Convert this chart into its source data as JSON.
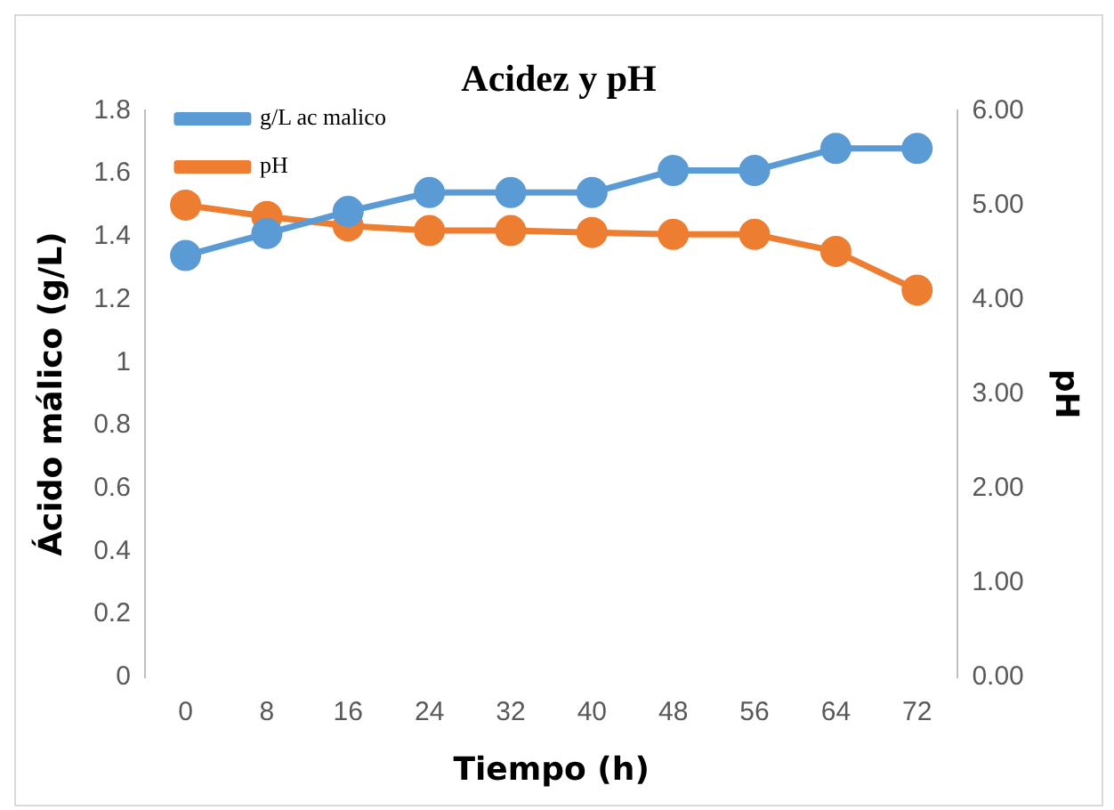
{
  "chart_data": {
    "type": "line",
    "title": "Acidez y pH",
    "xlabel": "Tiempo (h)",
    "ylabel": "Ácido málico (g/L)",
    "y2label": "pH",
    "categories": [
      "0",
      "8",
      "16",
      "24",
      "32",
      "40",
      "48",
      "56",
      "64",
      "72"
    ],
    "series": [
      {
        "name": "g/L ac malico",
        "color": "#5b9bd5",
        "values": [
          1.34,
          1.41,
          1.48,
          1.54,
          1.54,
          1.54,
          1.61,
          1.61,
          1.68,
          1.68
        ]
      },
      {
        "name": "pH",
        "color": "#ed7d31",
        "axis": "y2",
        "values": [
          5.0,
          4.88,
          4.78,
          4.73,
          4.73,
          4.71,
          4.69,
          4.69,
          4.51,
          4.1
        ]
      }
    ],
    "ylim": [
      0,
      1.8
    ],
    "yticks": [
      0,
      0.2,
      0.4,
      0.6,
      0.8,
      1,
      1.2,
      1.4,
      1.6,
      1.8
    ],
    "y2lim": [
      0,
      6
    ],
    "y2ticks": [
      {
        "value": 0,
        "label": "0.00"
      },
      {
        "value": 1,
        "label": "1.00"
      },
      {
        "value": 2,
        "label": "2.00"
      },
      {
        "value": 3,
        "label": "3.00"
      },
      {
        "value": 4,
        "label": "4.00"
      },
      {
        "value": 5,
        "label": "5.00"
      },
      {
        "value": 6,
        "label": "6.00"
      }
    ],
    "grid": false,
    "legend": "top left",
    "marker": "circle",
    "line_style": "solid"
  }
}
